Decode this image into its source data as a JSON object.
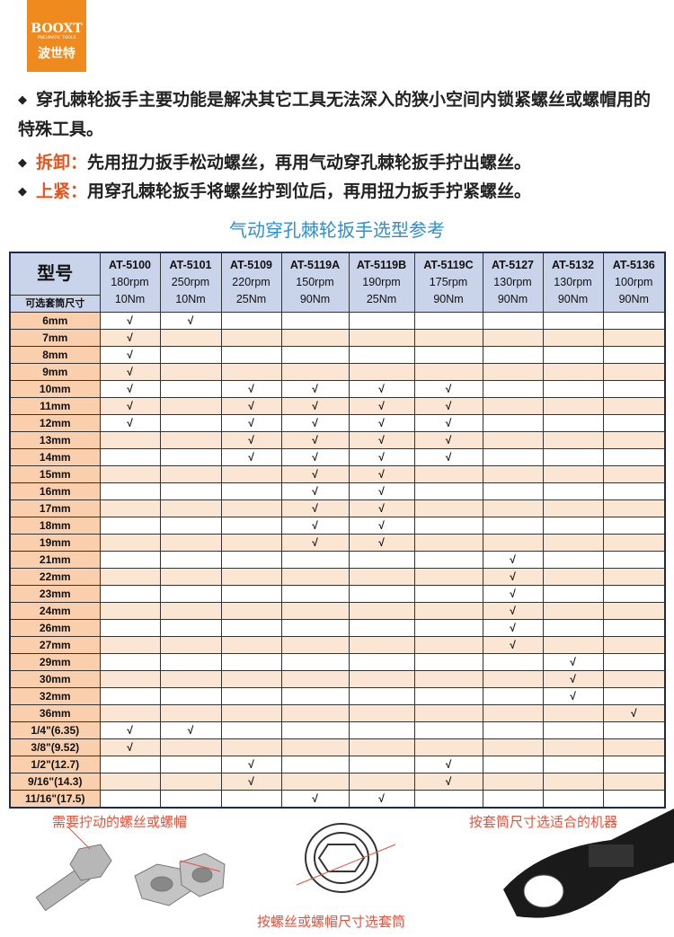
{
  "logo": {
    "brand": "BOOXT",
    "tagline": "PNEUMATIC TOOLS",
    "name": "波世特"
  },
  "bullets": [
    {
      "text": "穿孔棘轮扳手主要功能是解决其它工具无法深入的狭小空间内锁紧螺丝或螺帽用的特殊工具。"
    },
    {
      "label": "拆卸：",
      "text": "先用扭力扳手松动螺丝，再用气动穿孔棘轮扳手拧出螺丝。"
    },
    {
      "label": "上紧：",
      "text": "用穿孔棘轮扳手将螺丝拧到位后，再用扭力扳手拧紧螺丝。"
    }
  ],
  "table": {
    "title": "气动穿孔棘轮扳手选型参考",
    "model_header": "型号",
    "size_header": "可选套筒尺寸",
    "models": [
      {
        "model": "AT-5100",
        "speed": "180rpm",
        "torque": "10Nm"
      },
      {
        "model": "AT-5101",
        "speed": "250rpm",
        "torque": "10Nm"
      },
      {
        "model": "AT-5109",
        "speed": "220rpm",
        "torque": "25Nm"
      },
      {
        "model": "AT-5119A",
        "speed": "150rpm",
        "torque": "90Nm"
      },
      {
        "model": "AT-5119B",
        "speed": "190rpm",
        "torque": "25Nm"
      },
      {
        "model": "AT-5119C",
        "speed": "175rpm",
        "torque": "90Nm"
      },
      {
        "model": "AT-5127",
        "speed": "130rpm",
        "torque": "90Nm"
      },
      {
        "model": "AT-5132",
        "speed": "130rpm",
        "torque": "90Nm"
      },
      {
        "model": "AT-5136",
        "speed": "100rpm",
        "torque": "90Nm"
      }
    ],
    "rows": [
      {
        "size": "6mm",
        "cells": [
          "√",
          "√",
          null,
          null,
          null,
          null,
          null,
          null,
          null
        ]
      },
      {
        "size": "7mm",
        "cells": [
          "√",
          null,
          null,
          null,
          null,
          null,
          null,
          null,
          null
        ]
      },
      {
        "size": "8mm",
        "cells": [
          "√",
          null,
          null,
          null,
          null,
          null,
          null,
          null,
          null
        ]
      },
      {
        "size": "9mm",
        "cells": [
          "√",
          null,
          null,
          null,
          null,
          null,
          null,
          null,
          null
        ]
      },
      {
        "size": "10mm",
        "cells": [
          "√",
          null,
          "√",
          "√",
          "√",
          "√",
          null,
          null,
          null
        ]
      },
      {
        "size": "11mm",
        "cells": [
          "√",
          null,
          "√",
          "√",
          "√",
          "√",
          null,
          null,
          null
        ]
      },
      {
        "size": "12mm",
        "cells": [
          "√",
          null,
          "√",
          "√",
          "√",
          "√",
          null,
          null,
          null
        ]
      },
      {
        "size": "13mm",
        "cells": [
          null,
          null,
          "√",
          "√",
          "√",
          "√",
          null,
          null,
          null
        ]
      },
      {
        "size": "14mm",
        "cells": [
          null,
          null,
          "√",
          "√",
          "√",
          "√",
          null,
          null,
          null
        ]
      },
      {
        "size": "15mm",
        "cells": [
          null,
          null,
          null,
          "√",
          "√",
          null,
          null,
          null,
          null
        ]
      },
      {
        "size": "16mm",
        "cells": [
          null,
          null,
          null,
          "√",
          "√",
          null,
          null,
          null,
          null
        ]
      },
      {
        "size": "17mm",
        "cells": [
          null,
          null,
          null,
          "√",
          "√",
          null,
          null,
          null,
          null
        ]
      },
      {
        "size": "18mm",
        "cells": [
          null,
          null,
          null,
          "√",
          "√",
          null,
          null,
          null,
          null
        ]
      },
      {
        "size": "19mm",
        "cells": [
          null,
          null,
          null,
          "√",
          "√",
          null,
          null,
          null,
          null
        ]
      },
      {
        "size": "21mm",
        "cells": [
          null,
          null,
          null,
          null,
          null,
          null,
          "√",
          null,
          null
        ]
      },
      {
        "size": "22mm",
        "cells": [
          null,
          null,
          null,
          null,
          null,
          null,
          "√",
          null,
          null
        ]
      },
      {
        "size": "23mm",
        "cells": [
          null,
          null,
          null,
          null,
          null,
          null,
          "√",
          null,
          null
        ]
      },
      {
        "size": "24mm",
        "cells": [
          null,
          null,
          null,
          null,
          null,
          null,
          "√",
          null,
          null
        ]
      },
      {
        "size": "26mm",
        "cells": [
          null,
          null,
          null,
          null,
          null,
          null,
          "√",
          null,
          null
        ]
      },
      {
        "size": "27mm",
        "cells": [
          null,
          null,
          null,
          null,
          null,
          null,
          "√",
          null,
          null
        ]
      },
      {
        "size": "29mm",
        "cells": [
          null,
          null,
          null,
          null,
          null,
          null,
          null,
          "√",
          null
        ]
      },
      {
        "size": "30mm",
        "cells": [
          null,
          null,
          null,
          null,
          null,
          null,
          null,
          "√",
          null
        ]
      },
      {
        "size": "32mm",
        "cells": [
          null,
          null,
          null,
          null,
          null,
          null,
          null,
          "√",
          null
        ]
      },
      {
        "size": "36mm",
        "cells": [
          null,
          null,
          null,
          null,
          null,
          null,
          null,
          null,
          "√"
        ]
      },
      {
        "size": "1/4\"(6.35)",
        "cells": [
          "√",
          "√",
          null,
          null,
          null,
          null,
          null,
          null,
          null
        ]
      },
      {
        "size": "3/8\"(9.52)",
        "cells": [
          "√",
          null,
          null,
          null,
          null,
          null,
          null,
          null,
          null
        ]
      },
      {
        "size": "1/2\"(12.7)",
        "cells": [
          null,
          null,
          "√",
          null,
          null,
          "√",
          null,
          null,
          null
        ]
      },
      {
        "size": "9/16\"(14.3)",
        "cells": [
          null,
          null,
          "√",
          null,
          null,
          "√",
          null,
          null,
          null
        ]
      },
      {
        "size": "11/16\"(17.5)",
        "cells": [
          null,
          null,
          null,
          "√",
          "√",
          null,
          null,
          null,
          null
        ]
      }
    ]
  },
  "captions": {
    "fastener": "需要拧动的螺丝或螺帽",
    "socket": "按螺丝或螺帽尺寸选套筒",
    "machine": "按套筒尺寸选适合的机器"
  }
}
